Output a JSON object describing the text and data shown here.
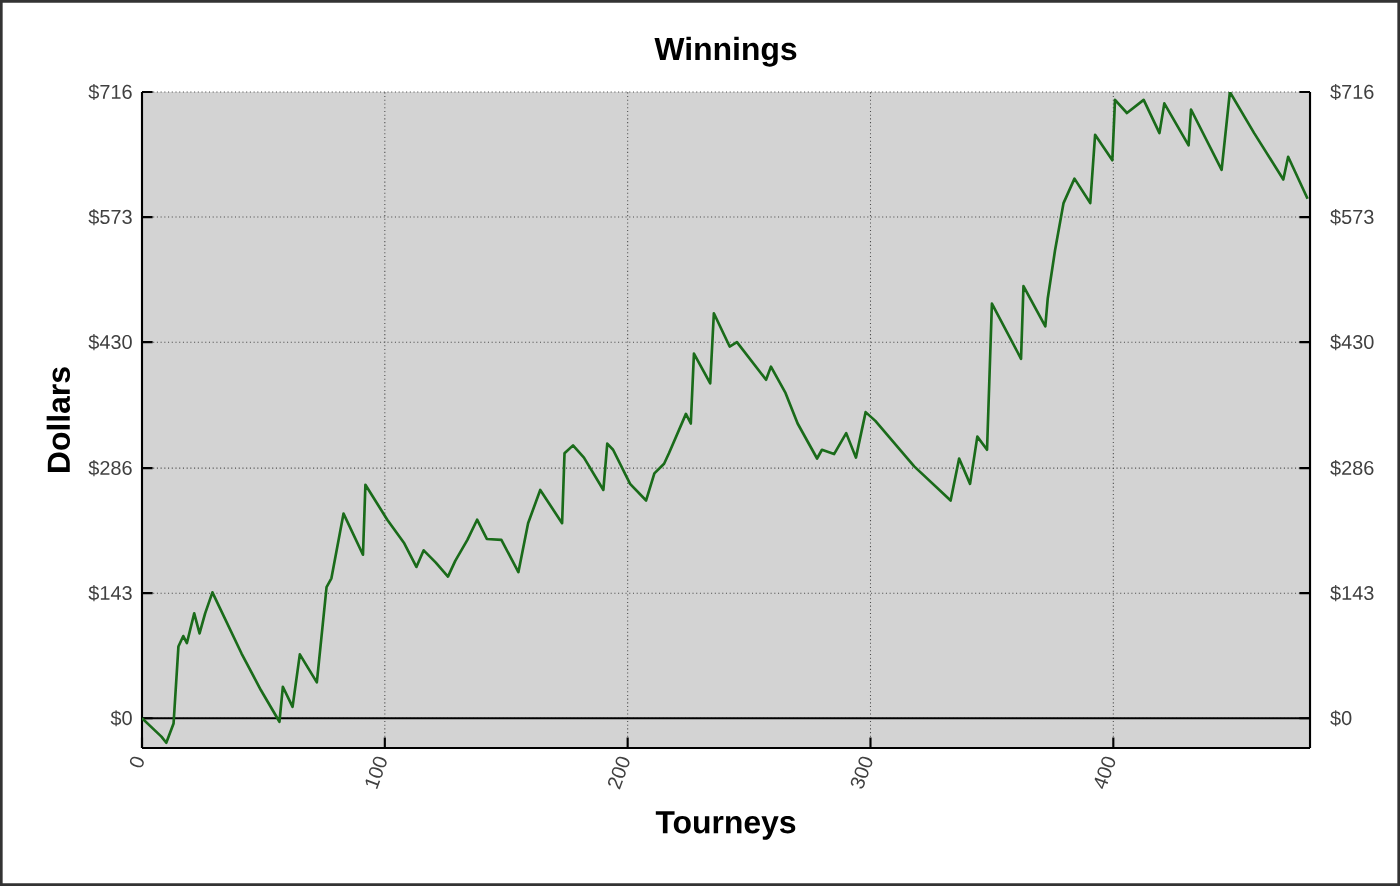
{
  "chart_data": {
    "type": "line",
    "title": "Winnings",
    "xlabel": "Tourneys",
    "ylabel": "Dollars",
    "x": [
      0,
      8,
      10,
      13,
      15,
      17,
      18.5,
      21.5,
      23.7,
      26,
      29,
      41,
      49,
      56.6,
      58,
      62,
      65,
      72,
      76,
      78,
      83,
      91,
      92,
      101,
      108,
      113,
      116,
      121,
      126,
      129,
      134,
      138,
      142,
      148,
      155,
      159,
      164,
      173,
      174,
      177.5,
      182,
      190,
      191.6,
      194,
      201,
      207.6,
      211,
      215,
      217,
      224,
      226,
      227.3,
      234,
      235.5,
      242,
      245,
      257,
      259,
      265,
      270,
      278,
      280,
      285,
      290,
      294,
      298,
      302,
      310,
      318,
      333,
      336.5,
      341,
      344,
      348,
      350,
      362,
      363,
      372,
      373,
      376,
      379.5,
      384,
      390.5,
      392.5,
      399.6,
      400.7,
      405.6,
      412.5,
      419,
      421,
      431,
      432,
      444.6,
      448,
      458,
      470,
      472,
      480
    ],
    "series": [
      {
        "color": "#1a6b1a",
        "values": [
          0,
          -21,
          -28,
          -6,
          82,
          94,
          86,
          120,
          97,
          120,
          144,
          74,
          32,
          -4,
          36,
          13,
          73,
          41,
          150,
          160,
          234,
          187,
          267,
          227,
          200,
          173,
          192,
          178,
          162,
          180,
          204,
          227,
          205,
          204,
          167,
          223,
          261,
          223,
          303,
          312,
          298,
          261,
          314,
          307,
          268,
          249,
          280,
          291,
          303,
          348,
          337,
          417,
          383,
          463,
          425,
          430,
          387,
          402,
          372,
          337,
          297,
          307,
          302,
          326,
          298,
          350,
          340,
          314,
          288,
          249,
          297,
          268,
          322,
          307,
          474,
          411,
          494,
          448,
          480,
          535,
          589,
          617,
          589,
          667,
          638,
          707,
          692,
          707,
          669,
          703,
          655,
          696,
          627,
          716,
          669,
          616,
          642,
          594
        ]
      }
    ],
    "xlim": [
      0,
      481
    ],
    "ylim": [
      -34,
      716
    ],
    "xticks": [
      0,
      100,
      200,
      300,
      400
    ],
    "yticks": [
      {
        "value": 0,
        "label": "$0"
      },
      {
        "value": 143,
        "label": "$143"
      },
      {
        "value": 286,
        "label": "$286"
      },
      {
        "value": 430,
        "label": "$430"
      },
      {
        "value": 573,
        "label": "$573"
      },
      {
        "value": 716,
        "label": "$716"
      }
    ],
    "y2lim": [
      -34,
      716
    ],
    "y2ticks": [
      {
        "value": 0,
        "label": "$0"
      },
      {
        "value": 143,
        "label": "$143"
      },
      {
        "value": 286,
        "label": "$286"
      },
      {
        "value": 430,
        "label": "$430"
      },
      {
        "value": 573,
        "label": "$573"
      },
      {
        "value": 716,
        "label": "$716"
      }
    ],
    "ref_lines": [
      {
        "axis": "y",
        "value": 0,
        "color": "#000000",
        "line_style": "solid"
      }
    ],
    "grid": true,
    "marker": "none",
    "line_style": "solid"
  }
}
